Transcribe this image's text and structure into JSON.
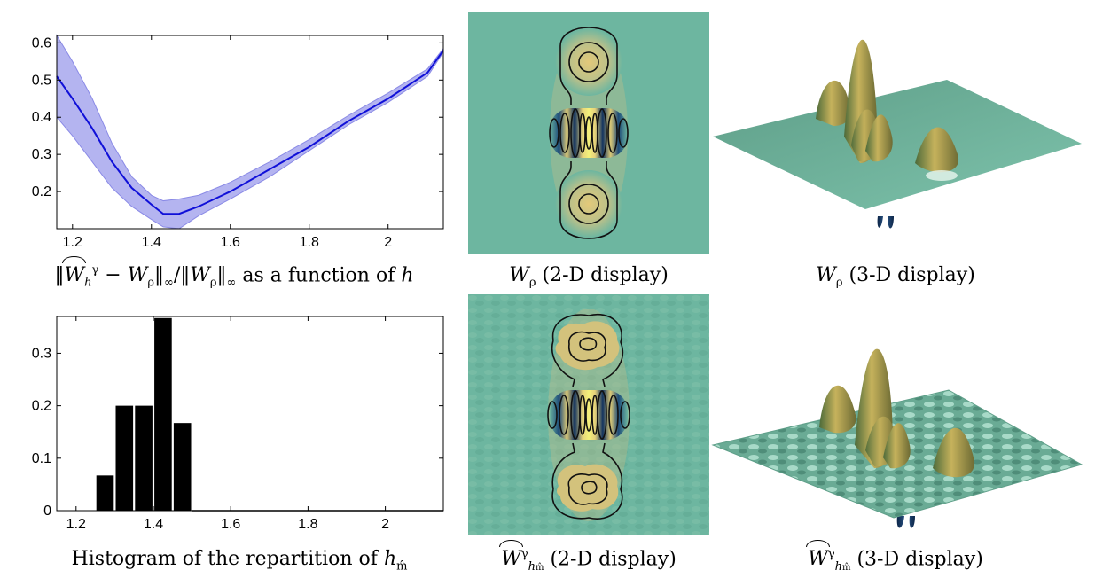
{
  "chart_data": [
    {
      "type": "line",
      "caption": "‖Ŵ_h^γ − W_ρ‖∞/‖W_ρ‖∞ as a function of h",
      "caption_tail": "as a function of",
      "caption_var": "h",
      "x": [
        1.16,
        1.2,
        1.25,
        1.3,
        1.35,
        1.4,
        1.43,
        1.47,
        1.52,
        1.6,
        1.7,
        1.8,
        1.9,
        2.0,
        2.1,
        2.14
      ],
      "series": [
        {
          "name": "mean",
          "values": [
            0.51,
            0.45,
            0.37,
            0.28,
            0.21,
            0.165,
            0.14,
            0.14,
            0.16,
            0.2,
            0.26,
            0.32,
            0.39,
            0.45,
            0.52,
            0.58
          ]
        },
        {
          "name": "upper",
          "values": [
            0.62,
            0.55,
            0.45,
            0.33,
            0.24,
            0.19,
            0.175,
            0.18,
            0.19,
            0.225,
            0.28,
            0.34,
            0.405,
            0.465,
            0.53,
            0.585
          ]
        },
        {
          "name": "lower",
          "values": [
            0.4,
            0.35,
            0.28,
            0.21,
            0.16,
            0.125,
            0.105,
            0.1,
            0.135,
            0.18,
            0.24,
            0.31,
            0.38,
            0.44,
            0.51,
            0.575
          ]
        }
      ],
      "xlim": [
        1.16,
        2.14
      ],
      "ylim": [
        0.1,
        0.62
      ],
      "xticks": [
        "1.2",
        "1.4",
        "1.6",
        "1.8",
        "2"
      ],
      "xtick_values": [
        1.2,
        1.4,
        1.6,
        1.8,
        2.0
      ],
      "yticks": [
        "0.2",
        "0.3",
        "0.4",
        "0.5",
        "0.6"
      ],
      "ytick_values": [
        0.2,
        0.3,
        0.4,
        0.5,
        0.6
      ],
      "colors": {
        "line": "#1010d8",
        "band": "#b4b4f0",
        "band_edge": "#8a8ae6"
      }
    },
    {
      "type": "bar",
      "caption_pre": "Histogram of the repartition of",
      "caption_var": "h",
      "caption_sub": "m̂",
      "bar_centers": [
        1.275,
        1.325,
        1.375,
        1.425,
        1.475
      ],
      "values": [
        0.067,
        0.2,
        0.2,
        0.367,
        0.167
      ],
      "bar_width": 0.045,
      "xlim": [
        1.15,
        2.15
      ],
      "ylim": [
        0,
        0.37
      ],
      "xticks": [
        "1.2",
        "1.4",
        "1.6",
        "1.8",
        "2"
      ],
      "xtick_values": [
        1.2,
        1.4,
        1.6,
        1.8,
        2.0
      ],
      "yticks": [
        "0",
        "0.1",
        "0.2",
        "0.3"
      ],
      "ytick_values": [
        0,
        0.1,
        0.2,
        0.3
      ],
      "colors": {
        "bar": "#000000"
      }
    }
  ],
  "images": {
    "w_rho_2d": {
      "caption_sub": "ρ",
      "caption_tail": "(2-D display)"
    },
    "w_rho_3d": {
      "caption_sub": "ρ",
      "caption_tail": "(3-D display)"
    },
    "w_hat_2d": {
      "caption_sup": "γ",
      "caption_sub": "h",
      "caption_subsub": "m̂",
      "caption_tail": "(2-D display)"
    },
    "w_hat_3d": {
      "caption_sup": "γ",
      "caption_sub": "h",
      "caption_subsub": "m̂",
      "caption_tail": "(3-D display)"
    },
    "colors": {
      "background": "#6db6a0",
      "peak": "#d9c877",
      "trough": "#12335f",
      "contour": "#111111"
    }
  }
}
